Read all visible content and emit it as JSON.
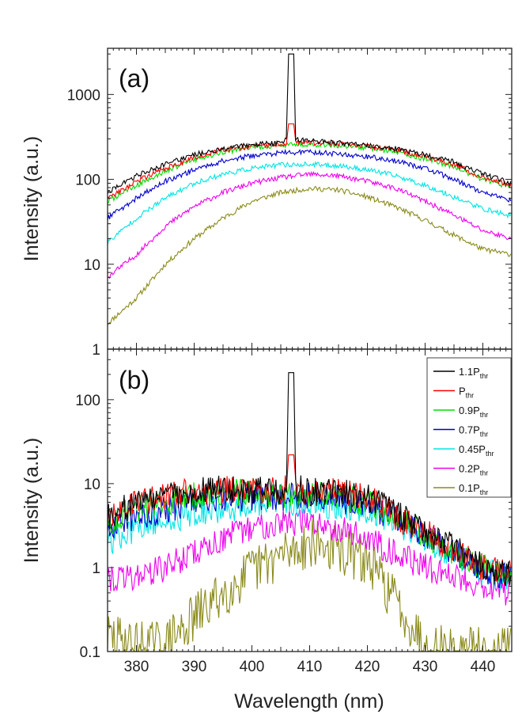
{
  "chart_data": [
    {
      "panel": "(a)",
      "type": "line",
      "yscale": "log",
      "xlim": [
        375,
        445
      ],
      "ylim": [
        1,
        3500
      ],
      "ylabel": "Intensity (a.u.)",
      "y_ticks": [
        1,
        10,
        100,
        1000
      ],
      "y_tick_labels": [
        "1",
        "10",
        "100",
        "1000"
      ],
      "series": [
        {
          "name": "1.1Pthr",
          "color": "#000000",
          "x": [
            375,
            380,
            385,
            390,
            395,
            400,
            405,
            406.3,
            406.8,
            407.3,
            410,
            415,
            420,
            425,
            430,
            435,
            440,
            445
          ],
          "y": [
            70,
            110,
            150,
            195,
            230,
            255,
            270,
            300,
            3000,
            300,
            285,
            270,
            250,
            230,
            195,
            160,
            115,
            90
          ],
          "peak": {
            "x": 406.8,
            "y": 3000
          }
        },
        {
          "name": "Pthr",
          "color": "#ff0000",
          "x": [
            375,
            380,
            385,
            390,
            395,
            400,
            405,
            406.3,
            406.8,
            407.3,
            410,
            415,
            420,
            425,
            430,
            435,
            440,
            445
          ],
          "y": [
            60,
            95,
            135,
            180,
            220,
            245,
            260,
            270,
            450,
            270,
            275,
            262,
            245,
            220,
            185,
            150,
            105,
            85
          ],
          "peak": {
            "x": 406.8,
            "y": 450
          }
        },
        {
          "name": "0.9Pthr",
          "color": "#00dd00",
          "x": [
            375,
            380,
            385,
            390,
            395,
            400,
            405,
            410,
            415,
            420,
            425,
            430,
            435,
            440,
            445
          ],
          "y": [
            55,
            85,
            125,
            170,
            210,
            235,
            250,
            260,
            250,
            235,
            210,
            175,
            140,
            100,
            80
          ]
        },
        {
          "name": "0.7Pthr",
          "color": "#0000cc",
          "x": [
            375,
            380,
            385,
            390,
            395,
            400,
            405,
            410,
            415,
            420,
            425,
            430,
            435,
            440,
            445
          ],
          "y": [
            35,
            60,
            95,
            130,
            165,
            190,
            205,
            210,
            200,
            185,
            165,
            135,
            100,
            70,
            55
          ]
        },
        {
          "name": "0.45Pthr",
          "color": "#00e5e5",
          "x": [
            375,
            380,
            385,
            390,
            395,
            400,
            405,
            410,
            415,
            420,
            425,
            430,
            435,
            440,
            445
          ],
          "y": [
            18,
            35,
            60,
            90,
            115,
            135,
            148,
            150,
            145,
            130,
            110,
            85,
            62,
            45,
            37
          ]
        },
        {
          "name": "0.2Pthr",
          "color": "#ee00ee",
          "x": [
            375,
            380,
            385,
            390,
            395,
            400,
            405,
            410,
            415,
            420,
            425,
            430,
            435,
            440,
            445
          ],
          "y": [
            7,
            13,
            28,
            48,
            70,
            90,
            105,
            115,
            110,
            95,
            78,
            55,
            38,
            25,
            20
          ]
        },
        {
          "name": "0.1Pthr",
          "color": "#8a8a1a",
          "x": [
            375,
            380,
            385,
            390,
            395,
            400,
            405,
            410,
            415,
            420,
            425,
            430,
            435,
            440,
            445
          ],
          "y": [
            2,
            4,
            10,
            20,
            35,
            55,
            70,
            78,
            75,
            62,
            47,
            33,
            22,
            15,
            13
          ]
        }
      ]
    },
    {
      "panel": "(b)",
      "type": "line",
      "yscale": "log",
      "xlim": [
        375,
        445
      ],
      "ylim": [
        0.1,
        400
      ],
      "xlabel": "Wavelength (nm)",
      "ylabel": "Intensity (a.u.)",
      "x_ticks": [
        380,
        390,
        400,
        410,
        420,
        430,
        440
      ],
      "x_tick_labels": [
        "380",
        "390",
        "400",
        "410",
        "420",
        "430",
        "440"
      ],
      "y_ticks": [
        0.1,
        1,
        10,
        100
      ],
      "y_tick_labels": [
        "0.1",
        "1",
        "10",
        "100"
      ],
      "legend_position": "top-right",
      "legend": [
        {
          "main": "1.1P",
          "sub": "thr"
        },
        {
          "main": "P",
          "sub": "thr"
        },
        {
          "main": "0.9P",
          "sub": "thr"
        },
        {
          "main": "0.7P",
          "sub": "thr"
        },
        {
          "main": "0.45P",
          "sub": "thr"
        },
        {
          "main": "0.2P",
          "sub": "thr"
        },
        {
          "main": "0.1P",
          "sub": "thr"
        }
      ],
      "series": [
        {
          "name": "1.1Pthr",
          "color": "#000000",
          "x": [
            375,
            380,
            385,
            390,
            395,
            400,
            405,
            406.3,
            406.8,
            407.3,
            410,
            415,
            420,
            425,
            430,
            435,
            440,
            445
          ],
          "y": [
            4,
            6,
            7,
            8,
            8.5,
            8.5,
            8,
            9,
            210,
            9,
            8,
            8,
            7,
            4.5,
            2.8,
            1.7,
            1,
            0.8
          ],
          "peak": {
            "x": 406.8,
            "y": 210
          }
        },
        {
          "name": "Pthr",
          "color": "#ff0000",
          "x": [
            375,
            380,
            385,
            390,
            395,
            400,
            405,
            406.3,
            406.8,
            407.3,
            410,
            415,
            420,
            425,
            430,
            435,
            440,
            445
          ],
          "y": [
            4,
            6,
            7,
            8,
            8.5,
            8.5,
            8,
            9,
            22,
            9,
            8,
            8,
            7,
            4,
            2.6,
            1.6,
            1,
            0.8
          ],
          "peak": {
            "x": 406.8,
            "y": 22
          }
        },
        {
          "name": "0.9Pthr",
          "color": "#00dd00",
          "x": [
            375,
            380,
            385,
            390,
            395,
            400,
            405,
            410,
            415,
            420,
            425,
            430,
            435,
            440,
            445
          ],
          "y": [
            3.5,
            5,
            6,
            7,
            7.5,
            8,
            7.5,
            7.5,
            7,
            6,
            4,
            2.5,
            1.5,
            1,
            0.7
          ]
        },
        {
          "name": "0.7Pthr",
          "color": "#0000cc",
          "x": [
            375,
            380,
            385,
            390,
            395,
            400,
            405,
            410,
            415,
            420,
            425,
            430,
            435,
            440,
            445
          ],
          "y": [
            3,
            4,
            5,
            6,
            6.5,
            7,
            7,
            7,
            6.5,
            5.5,
            3.8,
            2.4,
            1.5,
            1,
            0.7
          ]
        },
        {
          "name": "0.45Pthr",
          "color": "#00e5e5",
          "x": [
            375,
            380,
            385,
            390,
            395,
            400,
            405,
            410,
            415,
            420,
            425,
            430,
            435,
            440,
            445
          ],
          "y": [
            2,
            2.8,
            3.5,
            4.5,
            5,
            5.5,
            6,
            6,
            5.5,
            5,
            3.5,
            2.2,
            1.4,
            0.9,
            0.7
          ]
        },
        {
          "name": "0.2Pthr",
          "color": "#ee00ee",
          "x": [
            375,
            380,
            385,
            390,
            395,
            400,
            405,
            410,
            415,
            420,
            425,
            430,
            435,
            440,
            445
          ],
          "y": [
            0.7,
            0.8,
            1,
            1.5,
            2.2,
            3,
            3.5,
            3.5,
            3,
            2.2,
            1.5,
            1,
            0.8,
            0.6,
            0.5
          ]
        },
        {
          "name": "0.1Pthr",
          "color": "#8a8a1a",
          "x": [
            375,
            380,
            385,
            390,
            395,
            400,
            405,
            410,
            415,
            420,
            425,
            430,
            435,
            440,
            445
          ],
          "y": [
            0.15,
            0.12,
            0.12,
            0.25,
            0.5,
            0.9,
            1.4,
            2,
            1.6,
            1.2,
            0.4,
            0.12,
            0.1,
            0.1,
            0.1
          ]
        }
      ]
    }
  ]
}
